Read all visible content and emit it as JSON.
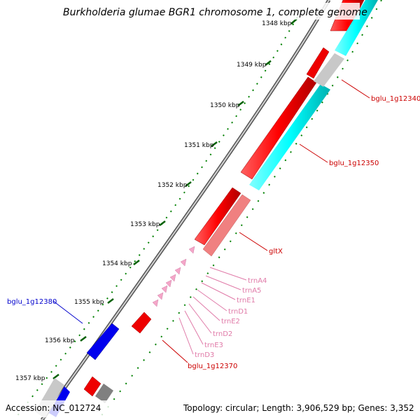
{
  "title": "Burkholderia glumae BGR1 chromosome 1, complete genome",
  "accession": "Accession: NC_012724",
  "topology": "Topology: circular; Length: 3,906,529 bp; Genes: 3,352",
  "ticks": [
    "1348 kbp",
    "1349 kbp",
    "1350 kbp",
    "1351 kbp",
    "1352 kbp",
    "1353 kbp",
    "1354 kbp",
    "1355 kbp",
    "1356 kbp",
    "1357 kbp"
  ],
  "labels": {
    "bglu_1g12340": "bglu_1g12340",
    "bglu_1g12350": "bglu_1g12350",
    "gltX": "gltX",
    "trnA4": "trnA4",
    "trnA5": "trnA5",
    "trnE1": "trnE1",
    "trnD1": "trnD1",
    "trnE2": "trnE2",
    "trnD2": "trnD2",
    "trnE3": "trnE3",
    "trnD3": "trnD3",
    "bglu_1g12370": "bglu_1g12370",
    "bglu_1g12380": "bglu_1g12380"
  },
  "colors": {
    "cds": "#ff0000",
    "cds_alt": "#f08080",
    "trna": "#f4a6c8",
    "cyan_feature": "#00ffff",
    "gray_feature": "#c0c0c0",
    "blue_feature": "#0000ff",
    "backbone": "#808080",
    "tick": "#008000",
    "label_red": "#cc0000",
    "label_pink": "#e07aa8",
    "label_blue": "#0000cc"
  }
}
